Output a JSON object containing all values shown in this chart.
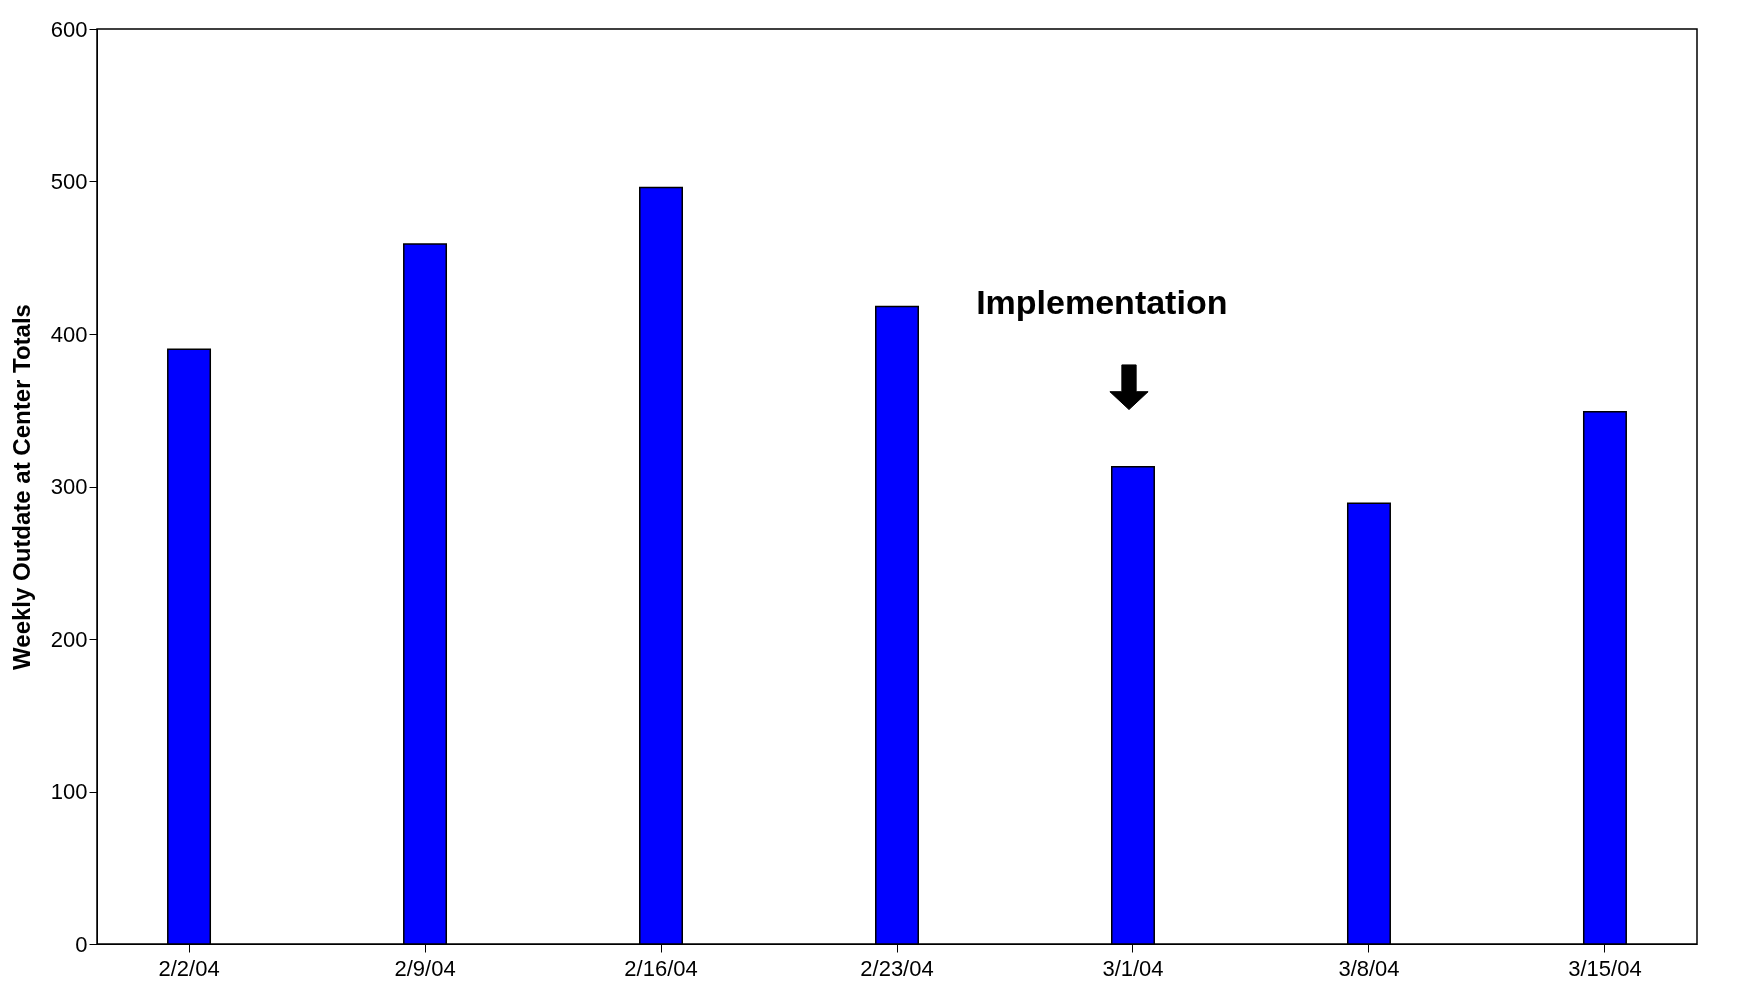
{
  "chart_data": {
    "type": "bar",
    "ylabel": "Weekly Outdate at Center Totals",
    "categories": [
      "2/2/04",
      "2/9/04",
      "2/16/04",
      "2/23/04",
      "3/1/04",
      "3/8/04",
      "3/15/04"
    ],
    "values": [
      390,
      459,
      496,
      418,
      313,
      289,
      349
    ],
    "color": "#0000ff",
    "ylim": [
      0,
      600
    ],
    "yticks": [
      0,
      100,
      200,
      300,
      400,
      500,
      600
    ],
    "annotations": [
      "Implementation"
    ]
  }
}
